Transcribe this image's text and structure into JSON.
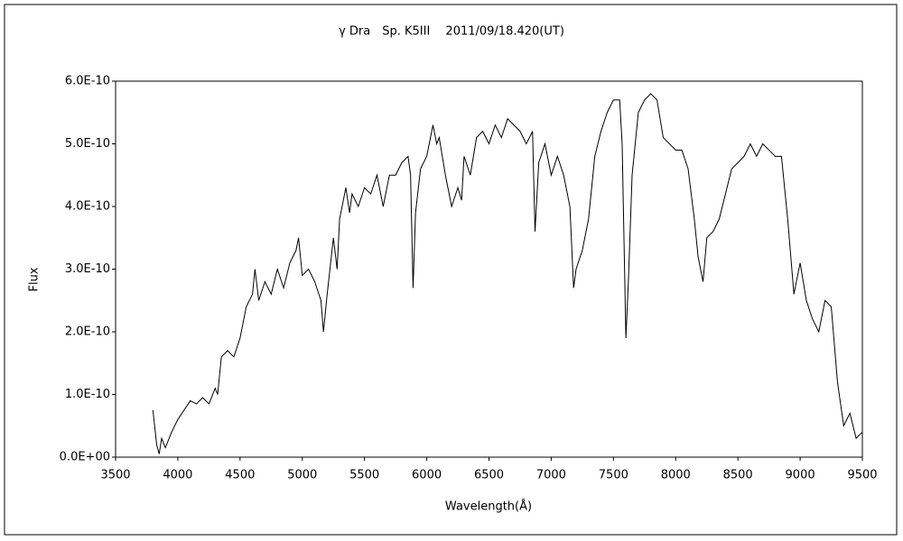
{
  "chart_data": {
    "type": "line",
    "title": "γ Dra　Sp. K5III　 2011/09/18.420(UT)",
    "x_label": "Wavelength(Å)",
    "y_label": "Flux",
    "xlim": [
      3500,
      9500
    ],
    "xticks": [
      3500,
      4000,
      4500,
      5000,
      5500,
      6000,
      6500,
      7000,
      7500,
      8000,
      8500,
      9000,
      9500
    ],
    "ylim": [
      0,
      6e-10
    ],
    "yticks": [
      {
        "value": 0,
        "label": "0.0E+00"
      },
      {
        "value": 1e-10,
        "label": "1.0E-10"
      },
      {
        "value": 2e-10,
        "label": "2.0E-10"
      },
      {
        "value": 3e-10,
        "label": "3.0E-10"
      },
      {
        "value": 4e-10,
        "label": "4.0E-10"
      },
      {
        "value": 5e-10,
        "label": "5.0E-10"
      },
      {
        "value": 6e-10,
        "label": "6.0E-10"
      }
    ],
    "grid": false,
    "series": [
      {
        "color": "#000000",
        "x": [
          3800,
          3830,
          3850,
          3870,
          3900,
          3950,
          4000,
          4050,
          4100,
          4150,
          4200,
          4250,
          4300,
          4320,
          4350,
          4400,
          4450,
          4500,
          4550,
          4600,
          4620,
          4650,
          4700,
          4750,
          4800,
          4850,
          4900,
          4950,
          4970,
          5000,
          5050,
          5100,
          5150,
          5170,
          5200,
          5250,
          5280,
          5300,
          5350,
          5380,
          5400,
          5450,
          5500,
          5550,
          5600,
          5650,
          5700,
          5750,
          5800,
          5850,
          5870,
          5890,
          5910,
          5950,
          6000,
          6050,
          6080,
          6100,
          6150,
          6200,
          6250,
          6280,
          6300,
          6350,
          6400,
          6450,
          6500,
          6550,
          6600,
          6650,
          6700,
          6750,
          6800,
          6850,
          6870,
          6900,
          6950,
          7000,
          7050,
          7100,
          7150,
          7180,
          7200,
          7250,
          7300,
          7350,
          7400,
          7450,
          7500,
          7550,
          7570,
          7600,
          7620,
          7650,
          7700,
          7750,
          7800,
          7850,
          7900,
          7950,
          8000,
          8050,
          8100,
          8150,
          8180,
          8220,
          8250,
          8300,
          8350,
          8400,
          8450,
          8500,
          8550,
          8600,
          8650,
          8700,
          8750,
          8800,
          8850,
          8900,
          8950,
          9000,
          9050,
          9100,
          9150,
          9200,
          9250,
          9300,
          9350,
          9400,
          9450,
          9500
        ],
        "values": [
          7.5e-11,
          2e-11,
          5e-12,
          3e-11,
          1.5e-11,
          4e-11,
          6e-11,
          7.5e-11,
          9e-11,
          8.5e-11,
          9.5e-11,
          8.5e-11,
          1.1e-10,
          1e-10,
          1.6e-10,
          1.7e-10,
          1.6e-10,
          1.9e-10,
          2.4e-10,
          2.6e-10,
          3e-10,
          2.5e-10,
          2.8e-10,
          2.6e-10,
          3e-10,
          2.7e-10,
          3.1e-10,
          3.3e-10,
          3.5e-10,
          2.9e-10,
          3e-10,
          2.8e-10,
          2.5e-10,
          2e-10,
          2.6e-10,
          3.5e-10,
          3e-10,
          3.8e-10,
          4.3e-10,
          3.9e-10,
          4.2e-10,
          4e-10,
          4.3e-10,
          4.2e-10,
          4.5e-10,
          4e-10,
          4.5e-10,
          4.5e-10,
          4.7e-10,
          4.8e-10,
          4.5e-10,
          2.7e-10,
          3.9e-10,
          4.6e-10,
          4.8e-10,
          5.3e-10,
          5e-10,
          5.1e-10,
          4.5e-10,
          4e-10,
          4.3e-10,
          4.1e-10,
          4.8e-10,
          4.5e-10,
          5.1e-10,
          5.2e-10,
          5e-10,
          5.3e-10,
          5.1e-10,
          5.4e-10,
          5.3e-10,
          5.2e-10,
          5e-10,
          5.2e-10,
          3.6e-10,
          4.7e-10,
          5e-10,
          4.5e-10,
          4.8e-10,
          4.5e-10,
          4e-10,
          2.7e-10,
          3e-10,
          3.3e-10,
          3.8e-10,
          4.8e-10,
          5.2e-10,
          5.5e-10,
          5.7e-10,
          5.7e-10,
          5e-10,
          1.9e-10,
          2.8e-10,
          4.5e-10,
          5.5e-10,
          5.7e-10,
          5.8e-10,
          5.7e-10,
          5.1e-10,
          5e-10,
          4.9e-10,
          4.9e-10,
          4.6e-10,
          3.8e-10,
          3.2e-10,
          2.8e-10,
          3.5e-10,
          3.6e-10,
          3.8e-10,
          4.2e-10,
          4.6e-10,
          4.7e-10,
          4.8e-10,
          5e-10,
          4.8e-10,
          5e-10,
          4.9e-10,
          4.8e-10,
          4.8e-10,
          3.8e-10,
          2.6e-10,
          3.1e-10,
          2.5e-10,
          2.2e-10,
          2e-10,
          2.5e-10,
          2.4e-10,
          1.2e-10,
          5e-11,
          7e-11,
          3e-11,
          4e-11
        ]
      }
    ]
  }
}
